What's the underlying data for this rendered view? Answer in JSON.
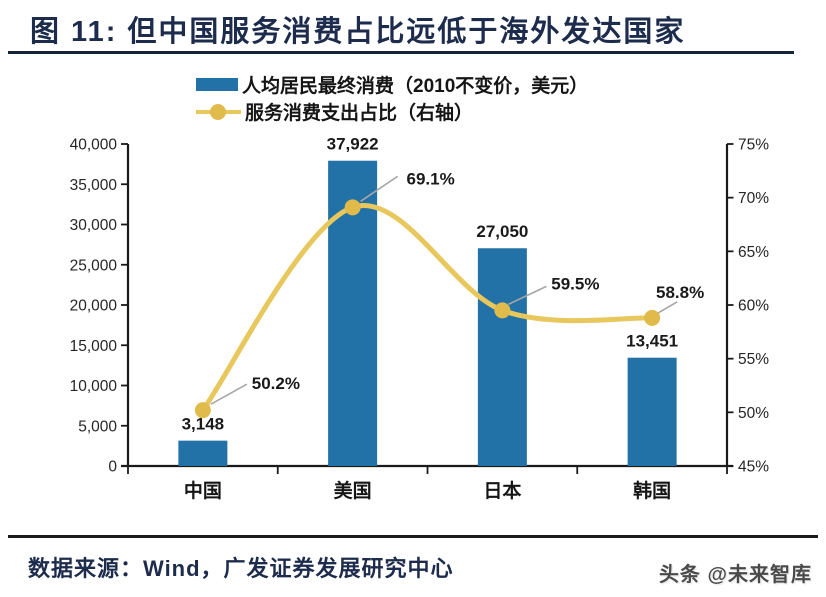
{
  "header": {
    "title": "图 11:  但中国服务消费占比远低于海外发达国家"
  },
  "legend": {
    "items": [
      {
        "label": "人均居民最终消费（2010不变价，美元）",
        "swatch": "bar-swatch",
        "color": "#2271A7"
      },
      {
        "label": "服务消费支出占比（右轴）",
        "swatch": "line-marker-swatch",
        "color": "#E8C75D"
      }
    ]
  },
  "chart_data": {
    "type": "bar",
    "subtype": "bar-line-combo",
    "categories": [
      "中国",
      "美国",
      "日本",
      "韩国"
    ],
    "series": [
      {
        "name": "人均居民最终消费（2010不变价，美元）",
        "type": "bar",
        "axis": "left",
        "color": "#2271A7",
        "values": [
          3148,
          37922,
          27050,
          13451
        ],
        "labels": [
          "3,148",
          "37,922",
          "27,050",
          "13,451"
        ]
      },
      {
        "name": "服务消费支出占比（右轴）",
        "type": "line",
        "axis": "right",
        "line_color": "#E8C75D",
        "marker_color": "#E0BB4C",
        "values": [
          50.2,
          69.1,
          59.5,
          58.8
        ],
        "labels": [
          "50.2%",
          "69.1%",
          "59.5%",
          "58.8%"
        ]
      }
    ],
    "left_axis": {
      "min": 0,
      "max": 40000,
      "step": 5000,
      "tick_labels": [
        "0",
        "5,000",
        "10,000",
        "15,000",
        "20,000",
        "25,000",
        "30,000",
        "35,000",
        "40,000"
      ]
    },
    "right_axis": {
      "min": 45,
      "max": 75,
      "step": 5,
      "tick_labels": [
        "45%",
        "50%",
        "55%",
        "60%",
        "65%",
        "70%",
        "75%"
      ]
    },
    "legend_position": "top",
    "grid": false,
    "axis_color": "#1a1a1a",
    "label_color": "#1a1a1a",
    "callout_line_color": "#a6a6a6"
  },
  "footer": {
    "source": "数据来源：Wind，广发证券发展研究中心",
    "watermark": "头条 @未来智库"
  }
}
